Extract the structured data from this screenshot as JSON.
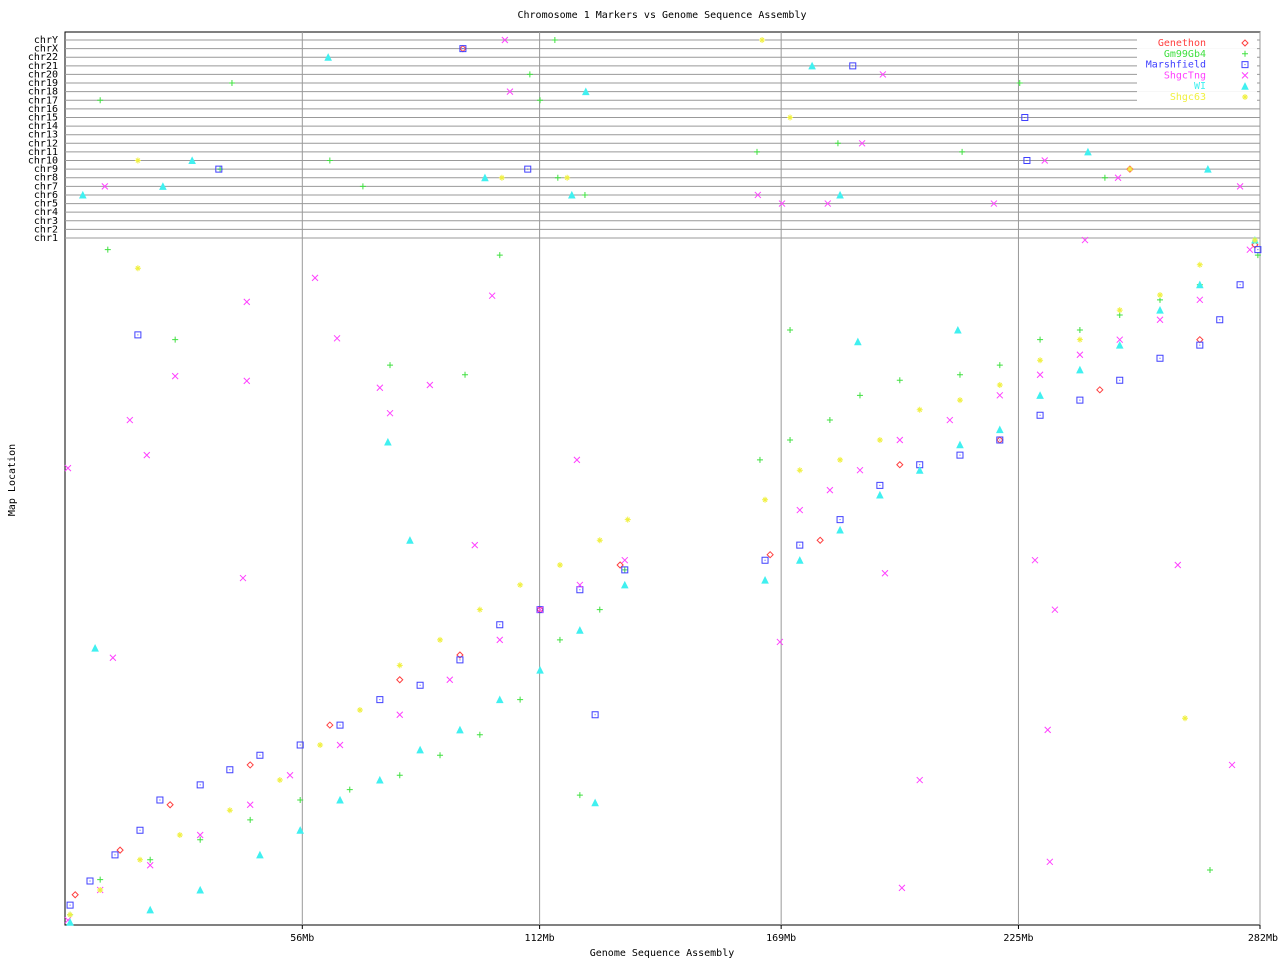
{
  "chart_data": {
    "type": "scatter",
    "title": "Chromosome 1 Markers vs Genome Sequence Assembly",
    "xlabel": "Genome Sequence Assembly",
    "ylabel": "Map Location",
    "xlim": [
      0,
      282
    ],
    "xticks": [
      {
        "value": 56,
        "label": "56Mb"
      },
      {
        "value": 112,
        "label": "112Mb"
      },
      {
        "value": 169,
        "label": "169Mb"
      },
      {
        "value": 225,
        "label": "225Mb"
      },
      {
        "value": 282,
        "label": "282Mb"
      }
    ],
    "ylim": [
      0,
      100
    ],
    "grid": true,
    "legend": "upper right",
    "chromosomes": [
      "chr1",
      "chr2",
      "chr3",
      "chr4",
      "chr5",
      "chr6",
      "chr7",
      "chr8",
      "chr9",
      "chr10",
      "chr11",
      "chr12",
      "chr13",
      "chr14",
      "chr15",
      "chr16",
      "chr17",
      "chr18",
      "chr19",
      "chr20",
      "chr21",
      "chr22",
      "chrX",
      "chrY"
    ],
    "series": [
      {
        "name": "Genethon",
        "color": "#ff4040",
        "marker": "diamond",
        "x": [
          2.4,
          13.0,
          24.8,
          43.7,
          62.5,
          79.0,
          93.2,
          112.1,
          131.0,
          166.4,
          178.2,
          197.0,
          220.6,
          244.2,
          267.8,
          280.8
        ],
        "y": [
          4.4,
          10.9,
          17.5,
          23.3,
          29.1,
          35.7,
          39.3,
          45.9,
          52.4,
          53.9,
          56.0,
          67.0,
          70.6,
          77.9,
          85.2,
          99.0
        ],
        "other_x": [
          93.9,
          251.3
        ],
        "other_chrom": [
          "chrX",
          "chr9"
        ]
      },
      {
        "name": "Gm99Gb4",
        "color": "#40e040",
        "marker": "plus",
        "x": [
          1.2,
          8.3,
          20.1,
          31.9,
          43.7,
          55.5,
          67.2,
          79.0,
          88.5,
          97.9,
          107.4,
          116.8,
          126.2,
          132.1,
          164.0,
          171.1,
          180.5,
          187.6,
          197.0,
          211.2,
          220.6,
          230.1,
          239.5,
          248.9,
          258.4,
          267.8,
          281.5,
          10.1,
          26.0,
          76.7,
          94.4,
          102.6,
          171.1,
          270.2,
          121.5
        ],
        "y": [
          1.5,
          6.6,
          9.5,
          12.4,
          15.3,
          18.2,
          19.7,
          21.8,
          24.7,
          27.7,
          32.8,
          41.5,
          45.9,
          51.7,
          67.7,
          70.6,
          73.5,
          77.1,
          79.3,
          80.1,
          81.5,
          85.2,
          86.6,
          88.8,
          91.0,
          93.2,
          97.5,
          98.3,
          85.2,
          81.5,
          80.1,
          97.5,
          86.6,
          8.0,
          18.9
        ],
        "other_x": [
          115.6,
          39.4,
          8.3,
          62.5,
          36.6,
          116.3,
          70.3,
          122.7,
          109.7,
          112.1,
          163.3,
          182.4,
          211.7,
          225.3,
          245.4
        ],
        "other_chrom": [
          "chrY",
          "chr19",
          "chr17",
          "chr10",
          "chr9",
          "chr8",
          "chr7",
          "chr6",
          "chr20",
          "chr17",
          "chr11",
          "chr12",
          "chr11",
          "chr19",
          "chr8"
        ]
      },
      {
        "name": "Marshfield",
        "color": "#4040ff",
        "marker": "square",
        "x": [
          1.2,
          5.9,
          11.8,
          17.7,
          22.4,
          31.9,
          38.9,
          46.0,
          55.5,
          64.9,
          74.3,
          83.8,
          93.2,
          102.6,
          112.1,
          121.5,
          132.1,
          165.2,
          173.4,
          182.9,
          192.3,
          201.7,
          211.2,
          220.6,
          230.1,
          239.5,
          248.9,
          258.4,
          267.8,
          272.5,
          277.3,
          281.5,
          17.2,
          125.1
        ],
        "y": [
          2.9,
          6.4,
          10.2,
          13.8,
          18.2,
          20.4,
          22.6,
          24.7,
          26.2,
          29.1,
          32.8,
          34.9,
          38.6,
          43.7,
          45.9,
          48.8,
          51.7,
          53.1,
          55.3,
          59.0,
          64.0,
          67.0,
          68.4,
          70.6,
          74.2,
          76.4,
          79.3,
          82.5,
          84.4,
          88.1,
          93.2,
          98.3,
          85.9,
          30.6
        ],
        "other_x": [
          93.9,
          185.9,
          36.3,
          109.2,
          226.5,
          227.0
        ],
        "other_chrom": [
          "chrX",
          "chr21",
          "chr9",
          "chr9",
          "chr15",
          "chr10"
        ]
      },
      {
        "name": "ShgcTng",
        "color": "#ff40ff",
        "marker": "cross",
        "x": [
          0.7,
          8.3,
          20.1,
          31.9,
          43.7,
          53.1,
          64.9,
          79.0,
          90.8,
          102.6,
          112.1,
          121.5,
          132.1,
          173.4,
          180.5,
          187.6,
          197.0,
          208.8,
          220.6,
          230.1,
          239.5,
          248.9,
          258.4,
          267.8,
          279.6,
          0.7,
          15.3,
          19.3,
          26.0,
          42.9,
          42.9,
          42.0,
          11.3,
          59.0,
          64.2,
          74.3,
          76.7,
          86.1,
          96.7,
          100.8,
          120.8,
          228.9,
          233.6,
          240.7,
          262.6,
          231.9,
          275.4,
          197.5,
          201.7,
          232.4,
          168.7,
          193.5
        ],
        "y": [
          0.7,
          5.1,
          8.7,
          13.1,
          17.5,
          21.8,
          26.2,
          30.6,
          35.7,
          41.5,
          45.9,
          49.5,
          53.1,
          60.4,
          63.3,
          66.2,
          70.6,
          73.5,
          77.1,
          80.1,
          83.0,
          85.2,
          88.1,
          91.0,
          98.3,
          66.5,
          73.5,
          68.4,
          79.9,
          90.7,
          79.2,
          50.5,
          38.9,
          94.2,
          85.4,
          78.2,
          74.5,
          78.6,
          55.3,
          91.6,
          67.7,
          53.1,
          45.9,
          99.7,
          52.4,
          28.4,
          23.3,
          5.4,
          21.1,
          9.2,
          41.2,
          51.2
        ],
        "other_x": [
          103.8,
          105.0,
          193.0,
          188.1,
          231.2,
          9.4,
          163.5,
          169.2,
          180.0,
          219.2,
          248.5,
          277.3
        ],
        "other_chrom": [
          "chrY",
          "chr18",
          "chr20",
          "chr12",
          "chr10",
          "chr7",
          "chr6",
          "chr5",
          "chr5",
          "chr5",
          "chr8",
          "chr7"
        ]
      },
      {
        "name": "WI",
        "color": "#40f0f0",
        "marker": "triangle",
        "x": [
          1.2,
          20.1,
          31.9,
          46.0,
          55.5,
          64.9,
          74.3,
          83.8,
          93.2,
          102.6,
          112.1,
          121.5,
          132.1,
          165.2,
          173.4,
          182.9,
          192.3,
          201.7,
          211.2,
          220.6,
          230.1,
          239.5,
          248.9,
          258.4,
          267.8,
          280.8,
          7.1,
          76.2,
          125.1,
          81.4,
          210.7,
          187.1
        ],
        "y": [
          0.4,
          2.2,
          5.1,
          10.2,
          13.8,
          18.2,
          21.1,
          25.5,
          28.4,
          32.8,
          37.1,
          42.9,
          49.5,
          50.2,
          53.1,
          57.5,
          62.6,
          66.2,
          69.9,
          72.1,
          77.1,
          80.8,
          84.4,
          89.5,
          93.2,
          99.7,
          40.3,
          70.3,
          17.8,
          56.0,
          86.6,
          84.9
        ],
        "other_x": [
          62.1,
          30.0,
          23.1,
          4.2,
          99.1,
          119.6,
          122.9,
          176.3,
          182.9,
          241.4,
          269.7
        ],
        "other_chrom": [
          "chr22",
          "chr10",
          "chr7",
          "chr6",
          "chr8",
          "chr6",
          "chr18",
          "chr21",
          "chr6",
          "chr11",
          "chr9"
        ]
      },
      {
        "name": "Shgc63",
        "color": "#f0f040",
        "marker": "star",
        "x": [
          1.2,
          8.3,
          17.7,
          27.1,
          38.9,
          50.7,
          60.2,
          69.6,
          79.0,
          88.5,
          97.9,
          107.4,
          116.8,
          126.2,
          132.8,
          165.2,
          173.4,
          182.9,
          192.3,
          201.7,
          211.2,
          220.6,
          230.1,
          239.5,
          248.9,
          258.4,
          267.8,
          280.8,
          17.2,
          264.3
        ],
        "y": [
          1.5,
          5.1,
          9.5,
          13.1,
          16.7,
          21.1,
          26.2,
          31.3,
          37.8,
          41.5,
          45.9,
          49.5,
          52.4,
          56.0,
          59.0,
          61.9,
          66.2,
          67.7,
          70.6,
          75.0,
          76.4,
          78.6,
          82.2,
          85.2,
          89.5,
          91.7,
          96.1,
          99.7,
          95.6,
          30.1
        ],
        "other_x": [
          17.2,
          164.5,
          171.1,
          103.1,
          118.5,
          251.3
        ],
        "other_chrom": [
          "chr10",
          "chrY",
          "chr15",
          "chr8",
          "chr8",
          "chr9"
        ]
      }
    ]
  }
}
